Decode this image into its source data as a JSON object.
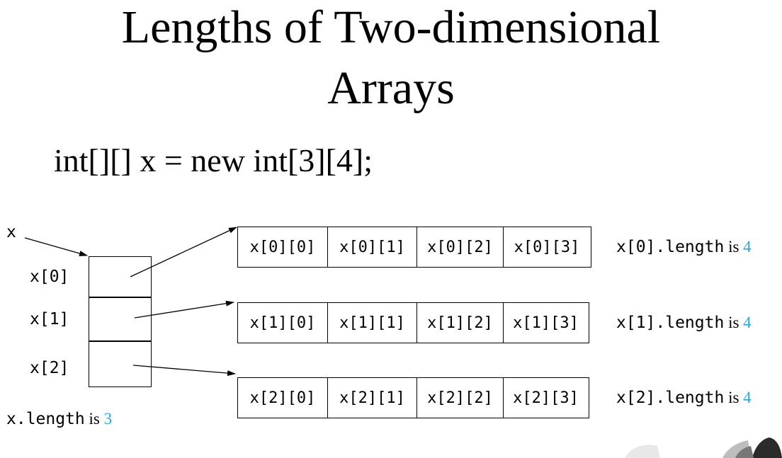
{
  "title_line1": "Lengths of Two-dimensional",
  "title_line2": "Arrays",
  "code": "int[][] x = new int[3][4];",
  "x_label": "x",
  "ref_labels": [
    "x[0]",
    "x[1]",
    "x[2]"
  ],
  "rows": [
    [
      "x[0][0]",
      "x[0][1]",
      "x[0][2]",
      "x[0][3]"
    ],
    [
      "x[1][0]",
      "x[1][1]",
      "x[1][2]",
      "x[1][3]"
    ],
    [
      "x[2][0]",
      "x[2][1]",
      "x[2][2]",
      "x[2][3]"
    ]
  ],
  "row_lengths": [
    {
      "expr": "x[0].length",
      "is": "is",
      "value": "4"
    },
    {
      "expr": "x[1].length",
      "is": "is",
      "value": "4"
    },
    {
      "expr": "x[2].length",
      "is": "is",
      "value": "4"
    }
  ],
  "x_length": {
    "expr": "x.length",
    "is": "is",
    "value": "3"
  },
  "colors": {
    "value_blue": "#2aa7e0"
  }
}
